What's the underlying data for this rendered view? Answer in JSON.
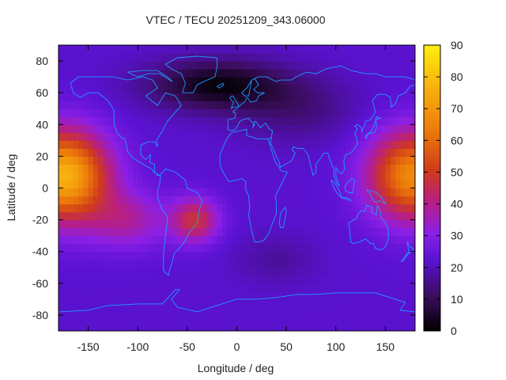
{
  "chart_data": {
    "type": "heatmap",
    "title": "VTEC / TECU 20251209_343.06000",
    "xlabel": "Longitude / deg",
    "ylabel": "Latitude / deg",
    "xlim": [
      -180,
      180
    ],
    "ylim": [
      -90,
      90
    ],
    "xticks": [
      "-150",
      "-100",
      "-50",
      "0",
      "50",
      "100",
      "150"
    ],
    "xtick_values": [
      -150,
      -100,
      -50,
      0,
      50,
      100,
      150
    ],
    "yticks": [
      "80",
      "60",
      "40",
      "20",
      "0",
      "-20",
      "-40",
      "-60",
      "-80"
    ],
    "ytick_values": [
      80,
      60,
      40,
      20,
      0,
      -20,
      -40,
      -60,
      -80
    ],
    "colorbar": {
      "range": [
        0,
        90
      ],
      "ticks": [
        "0",
        "10",
        "20",
        "30",
        "40",
        "50",
        "60",
        "70",
        "80",
        "90"
      ],
      "tick_values": [
        0,
        10,
        20,
        30,
        40,
        50,
        60,
        70,
        80,
        90
      ],
      "colormap": "black-purple-red-orange-yellow"
    },
    "features": [
      {
        "region": "Pacific equatorial maximum",
        "lon": -165,
        "lat": 8,
        "vtec_approx": 75
      },
      {
        "region": "Western Pacific / Indonesia maximum",
        "lon": 150,
        "lat": 8,
        "vtec_approx": 70
      },
      {
        "region": "South America secondary maximum",
        "lon": -40,
        "lat": -20,
        "vtec_approx": 50
      },
      {
        "region": "Northern high-latitude minimum",
        "lon": 0,
        "lat": 62,
        "vtec_approx": 3
      },
      {
        "region": "Southern high latitudes",
        "lon": 0,
        "lat": -70,
        "vtec_approx": 20
      }
    ],
    "coastlines": "world map overlay, cyan lines"
  }
}
